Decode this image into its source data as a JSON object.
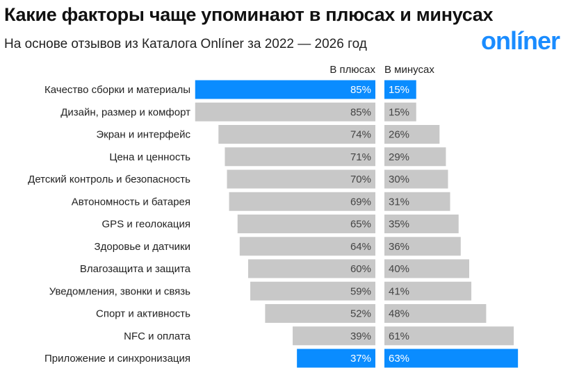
{
  "title": "Какие факторы чаще упоминают в плюсах и минусах",
  "subtitle": "На основе отзывов из Каталога Onlíner за 2022 — 2026 год",
  "logo": "onlíner",
  "colors": {
    "highlight": "#0a8cff",
    "bar": "#c8c8c8",
    "label_on_gray": "#444444",
    "label_on_blue": "#ffffff"
  },
  "chart_data": {
    "type": "bar",
    "orientation": "horizontal-diverging",
    "title": "Какие факторы чаще упоминают в плюсах и минусах",
    "subtitle": "На основе отзывов из Каталога Onlíner за 2022 — 2026 год",
    "categories": [
      "Качество сборки и материалы",
      "Дизайн, размер и комфорт",
      "Экран и интерфейс",
      "Цена и ценность",
      "Детский контроль и безопасность",
      "Автономность и батарея",
      "GPS и геолокация",
      "Здоровье и датчики",
      "Влагозащита и защита",
      "Уведомления, звонки и связь",
      "Спорт и активность",
      "NFC и оплата",
      "Приложение и синхронизация"
    ],
    "series": [
      {
        "name": "В плюсах",
        "values": [
          85,
          85,
          74,
          71,
          70,
          69,
          65,
          64,
          60,
          59,
          52,
          39,
          37
        ]
      },
      {
        "name": "В минусах",
        "values": [
          15,
          15,
          26,
          29,
          30,
          31,
          35,
          36,
          40,
          41,
          48,
          61,
          63
        ]
      }
    ],
    "highlighted_categories": [
      0,
      12
    ],
    "unit": "%",
    "xlim": [
      0,
      100
    ],
    "grid": false
  }
}
